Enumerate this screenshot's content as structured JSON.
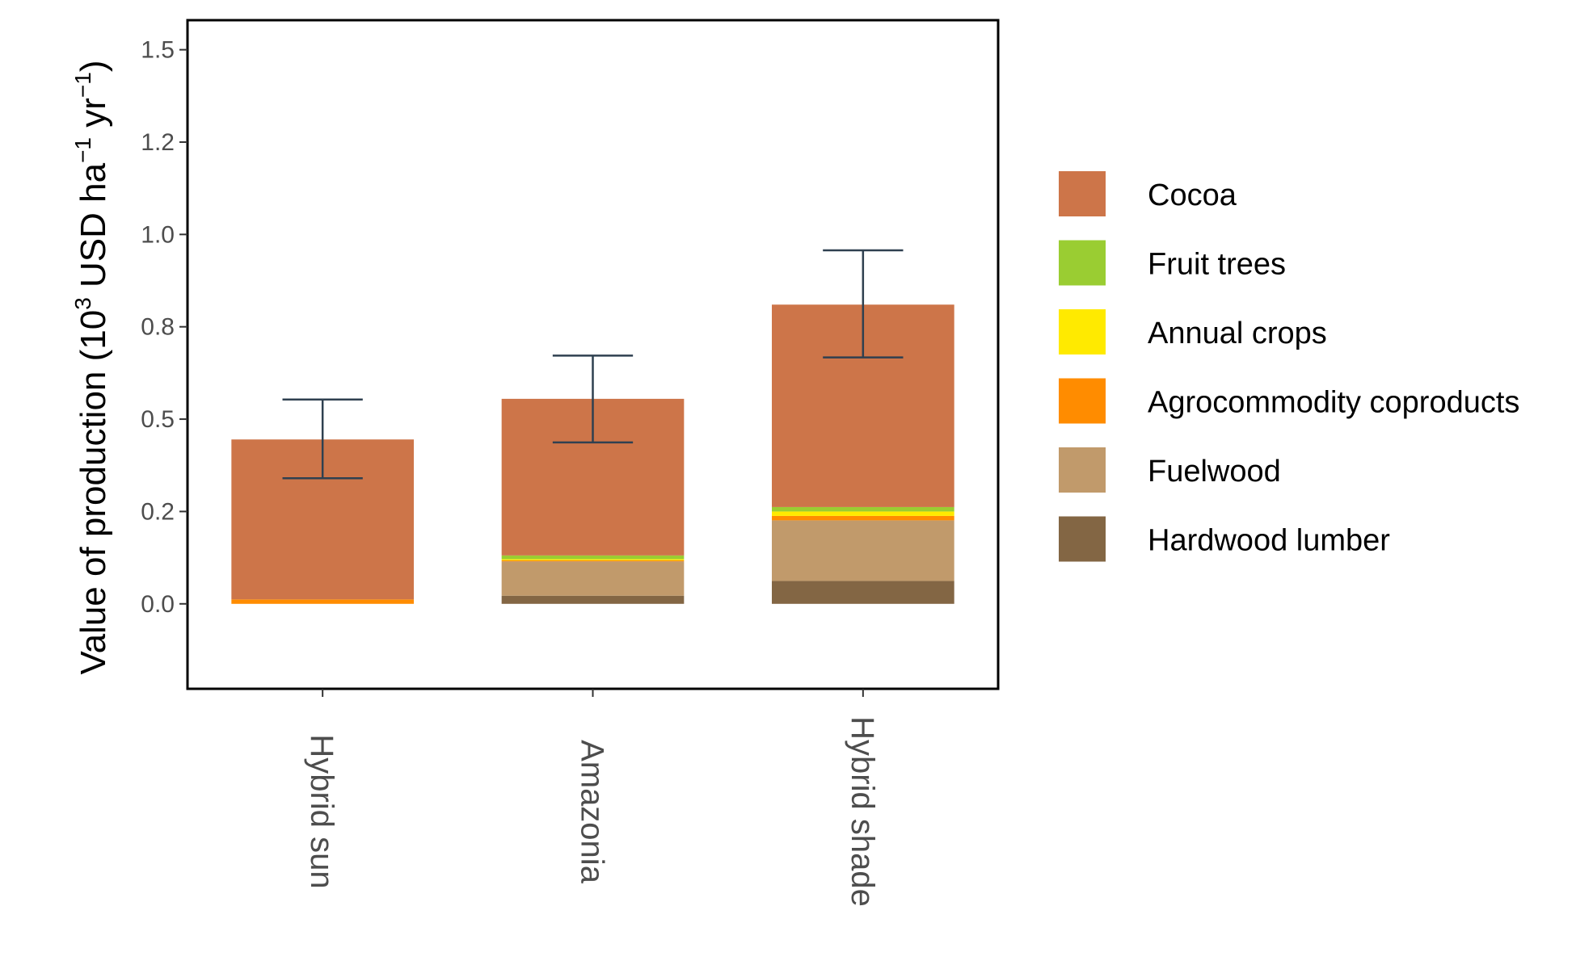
{
  "chart_data": {
    "type": "bar",
    "stacked": true,
    "categories": [
      "Hybrid sun",
      "Amazonia",
      "Hybrid shade"
    ],
    "ylabel": {
      "prefix": "Value of production (10",
      "sup1": "3",
      "mid1": " USD ha",
      "sup2": "−1",
      "mid2": " yr",
      "sup3": "−1",
      "suffix": ")"
    },
    "ylim": [
      -0.23,
      1.58
    ],
    "yticks": [
      {
        "value": 0.0,
        "label": "0.0"
      },
      {
        "value": 0.25,
        "label": "0.2"
      },
      {
        "value": 0.5,
        "label": "0.5"
      },
      {
        "value": 0.75,
        "label": "0.8"
      },
      {
        "value": 1.0,
        "label": "1.0"
      },
      {
        "value": 1.25,
        "label": "1.2"
      },
      {
        "value": 1.5,
        "label": "1.5"
      }
    ],
    "series": [
      {
        "name": "Hardwood lumber",
        "color": "#836644",
        "values": [
          0.0,
          0.022,
          0.062
        ]
      },
      {
        "name": "Fuelwood",
        "color": "#c19a6b",
        "values": [
          0.0,
          0.093,
          0.164
        ]
      },
      {
        "name": "Agrocommodity coproducts",
        "color": "#ff8c00",
        "values": [
          0.012,
          0.003,
          0.012
        ]
      },
      {
        "name": "Annual crops",
        "color": "#ffea00",
        "values": [
          0.0,
          0.003,
          0.012
        ]
      },
      {
        "name": "Fruit trees",
        "color": "#9acd32",
        "values": [
          0.0,
          0.01,
          0.012
        ]
      },
      {
        "name": "Cocoa",
        "color": "#cd7549",
        "values": [
          0.433,
          0.424,
          0.548
        ]
      }
    ],
    "error_bars": [
      {
        "low": 0.34,
        "high": 0.553
      },
      {
        "low": 0.437,
        "high": 0.672
      },
      {
        "low": 0.667,
        "high": 0.957
      }
    ],
    "legend": {
      "position": "right",
      "items": [
        "Cocoa",
        "Fruit trees",
        "Annual crops",
        "Agrocommodity coproducts",
        "Fuelwood",
        "Hardwood lumber"
      ]
    }
  }
}
